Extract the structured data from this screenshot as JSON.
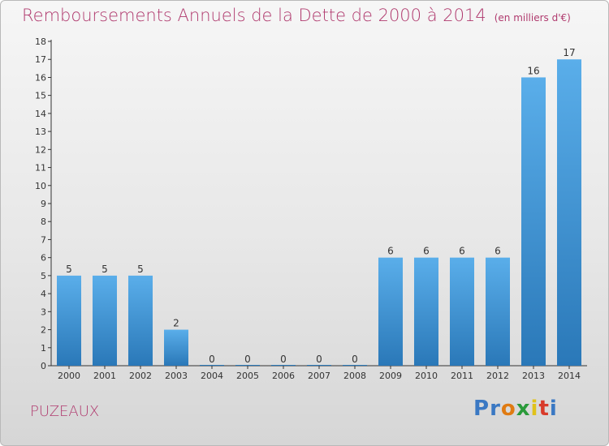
{
  "title": "Remboursements Annuels de la Dette de 2000 à 2014",
  "unit": "(en milliers d'€)",
  "commune": "PUZEAUX",
  "logo": {
    "text": "Proxiti",
    "colors": [
      "#3a78c3",
      "#3a78c3",
      "#e07b12",
      "#2a9a3a",
      "#e0c21a",
      "#d83a2a",
      "#3a78c3"
    ]
  },
  "colors": {
    "title": "#b03a6e",
    "bar_top": "#5aaeea",
    "bar_bottom": "#2a78b8"
  },
  "chart_data": {
    "type": "bar",
    "title": "Remboursements Annuels de la Dette de 2000 à 2014",
    "xlabel": "",
    "ylabel": "",
    "categories": [
      "2000",
      "2001",
      "2002",
      "2003",
      "2004",
      "2005",
      "2006",
      "2007",
      "2008",
      "2009",
      "2010",
      "2011",
      "2012",
      "2013",
      "2014"
    ],
    "values": [
      5,
      5,
      5,
      2,
      0,
      0,
      0,
      0,
      0,
      6,
      6,
      6,
      6,
      16,
      17
    ],
    "data_labels": [
      "5",
      "5",
      "5",
      "2",
      "0",
      "0",
      "0",
      "0",
      "0",
      "6",
      "6",
      "6",
      "6",
      "16",
      "17"
    ],
    "ylim": [
      0,
      18
    ],
    "yticks": [
      "0",
      "1",
      "2",
      "3",
      "4",
      "5",
      "6",
      "7",
      "8",
      "9",
      "10",
      "11",
      "12",
      "13",
      "14",
      "15",
      "16",
      "17",
      "18"
    ],
    "grid": false,
    "legend": "none"
  }
}
